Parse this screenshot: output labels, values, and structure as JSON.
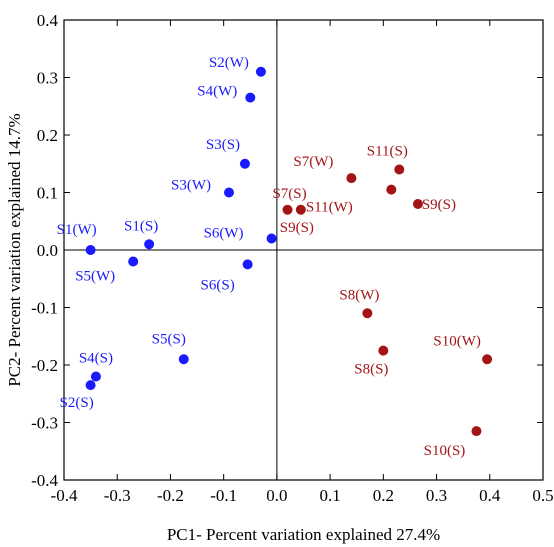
{
  "chart_data": {
    "type": "scatter",
    "title": "",
    "xlabel": "PC1- Percent variation explained 27.4%",
    "ylabel": "PC2- Percent variation explained 14.7%",
    "xlim": [
      -0.4,
      0.5
    ],
    "ylim": [
      -0.4,
      0.4
    ],
    "xticks": [
      "-0.4",
      "-0.3",
      "-0.2",
      "-0.1",
      "0.0",
      "0.1",
      "0.2",
      "0.3",
      "0.4",
      "0.5"
    ],
    "yticks": [
      "0.4",
      "0.3",
      "0.2",
      "0.1",
      "0.0",
      "-0.1",
      "-0.2",
      "-0.3",
      "-0.4"
    ],
    "reference_lines": {
      "x": 0,
      "y": 0
    },
    "grid": false,
    "legend": "none",
    "colors": {
      "blue_group": "#1a1aff",
      "red_group": "#a31515"
    },
    "series": [
      {
        "color": "#1a1aff",
        "points": [
          {
            "label": "S2(W)",
            "x": -0.03,
            "y": 0.31
          },
          {
            "label": "S4(W)",
            "x": -0.05,
            "y": 0.265
          },
          {
            "label": "S3(S)",
            "x": -0.06,
            "y": 0.15
          },
          {
            "label": "S3(W)",
            "x": -0.09,
            "y": 0.1
          },
          {
            "label": "S1(S)",
            "x": -0.24,
            "y": 0.01
          },
          {
            "label": "S1(W)",
            "x": -0.35,
            "y": 0.0
          },
          {
            "label": "S6(W)",
            "x": -0.01,
            "y": 0.02
          },
          {
            "label": "S5(W)",
            "x": -0.27,
            "y": -0.02
          },
          {
            "label": "S6(S)",
            "x": -0.055,
            "y": -0.025
          },
          {
            "label": "S5(S)",
            "x": -0.175,
            "y": -0.19
          },
          {
            "label": "S4(S)",
            "x": -0.34,
            "y": -0.22
          },
          {
            "label": "S2(S)",
            "x": -0.35,
            "y": -0.235
          }
        ]
      },
      {
        "color": "#a31515",
        "points": [
          {
            "label": "S7(W)",
            "x": 0.14,
            "y": 0.125
          },
          {
            "label": "S11(S)",
            "x": 0.23,
            "y": 0.14
          },
          {
            "label": "S11(W)",
            "x": 0.215,
            "y": 0.105
          },
          {
            "label": "S7(S)",
            "x": 0.02,
            "y": 0.07
          },
          {
            "label": "S9(S)",
            "x": 0.045,
            "y": 0.07
          },
          {
            "label": "S9(S)",
            "x": 0.265,
            "y": 0.08
          },
          {
            "label": "S8(W)",
            "x": 0.17,
            "y": -0.11
          },
          {
            "label": "S8(S)",
            "x": 0.2,
            "y": -0.175
          },
          {
            "label": "S10(W)",
            "x": 0.395,
            "y": -0.19
          },
          {
            "label": "S10(S)",
            "x": 0.375,
            "y": -0.315
          }
        ]
      }
    ]
  }
}
